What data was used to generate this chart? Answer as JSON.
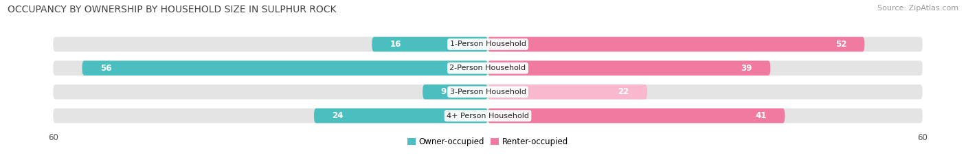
{
  "title": "OCCUPANCY BY OWNERSHIP BY HOUSEHOLD SIZE IN SULPHUR ROCK",
  "source": "Source: ZipAtlas.com",
  "categories": [
    "1-Person Household",
    "2-Person Household",
    "3-Person Household",
    "4+ Person Household"
  ],
  "owner_values": [
    16,
    56,
    9,
    24
  ],
  "renter_values": [
    52,
    39,
    22,
    41
  ],
  "owner_color": "#4bbfbf",
  "renter_color": "#f07aa0",
  "renter_color_light": "#f9b8ce",
  "label_color_dark": "#666666",
  "label_color_white": "#ffffff",
  "axis_max": 60,
  "bar_height": 0.62,
  "background_color": "#ffffff",
  "bar_bg_color": "#e4e4e4",
  "title_fontsize": 10,
  "source_fontsize": 8,
  "bar_label_fontsize": 8.5,
  "category_label_fontsize": 8,
  "axis_label_fontsize": 8.5,
  "legend_fontsize": 8.5,
  "inside_threshold": 8
}
